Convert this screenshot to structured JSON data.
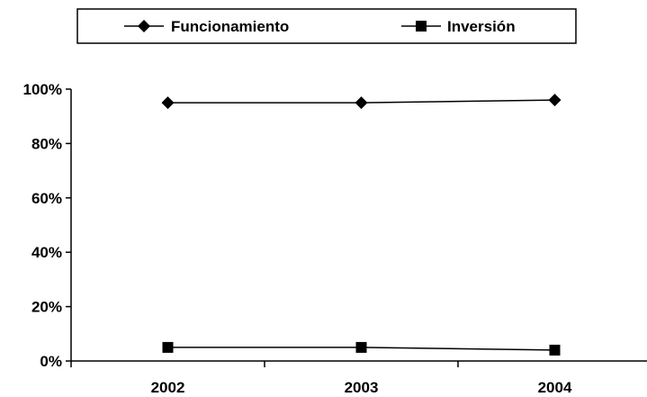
{
  "chart_data": {
    "type": "line",
    "categories": [
      "2002",
      "2003",
      "2004"
    ],
    "series": [
      {
        "name": "Funcionamiento",
        "marker": "diamond",
        "values": [
          95,
          95,
          96
        ]
      },
      {
        "name": "Inversión",
        "marker": "square",
        "values": [
          5,
          5,
          4
        ]
      }
    ],
    "ylim": [
      0,
      100
    ],
    "yticks": [
      0,
      20,
      40,
      60,
      80,
      100
    ],
    "ytick_labels": [
      "0%",
      "20%",
      "40%",
      "60%",
      "80%",
      "100%"
    ],
    "legend_position": "top",
    "grid": false,
    "colors": {
      "line": "#000000",
      "marker": "#000000"
    }
  }
}
